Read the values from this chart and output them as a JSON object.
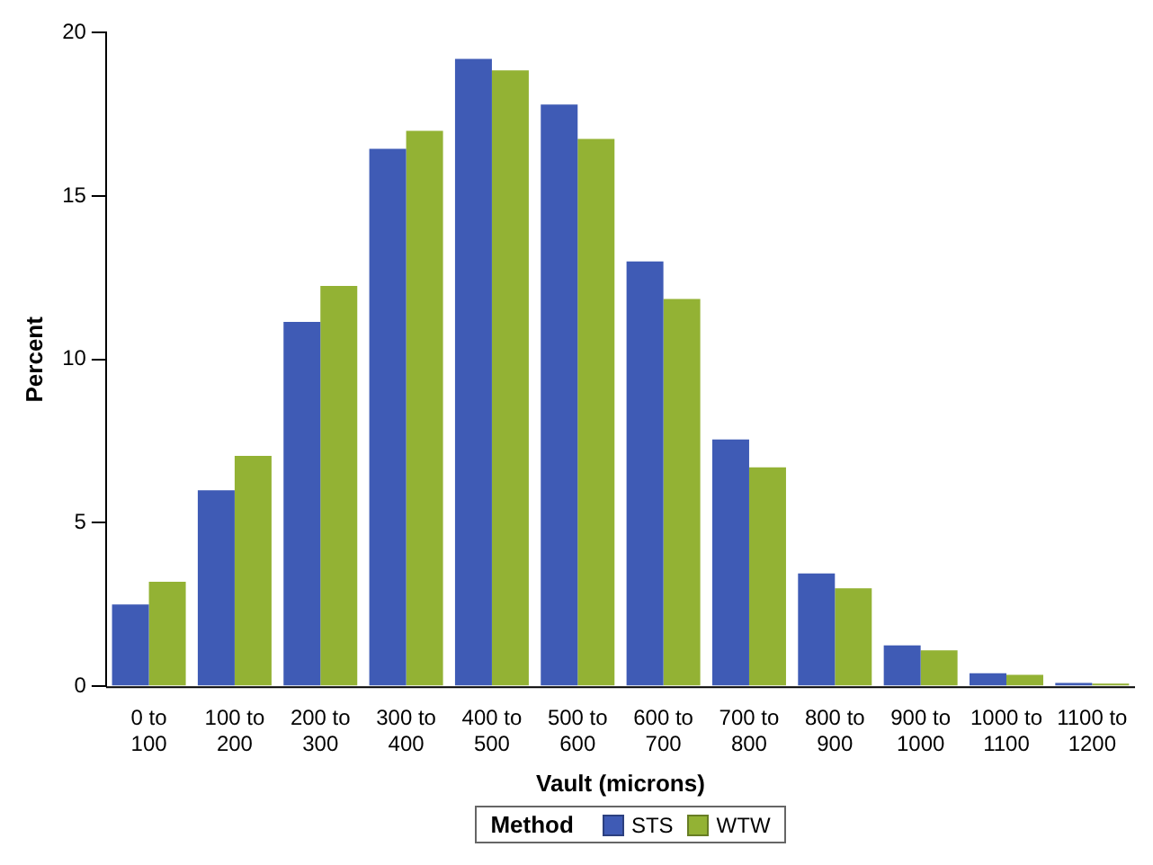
{
  "chart_data": {
    "type": "bar",
    "xlabel": "Vault (microns)",
    "ylabel": "Percent",
    "legend_title": "Method",
    "legend": "bottom",
    "grid": false,
    "ylim": [
      0,
      20
    ],
    "yticks": [
      0,
      5,
      10,
      15,
      20
    ],
    "categories": [
      "0 to 100",
      "100 to 200",
      "200 to 300",
      "300 to 400",
      "400 to 500",
      "500 to 600",
      "600 to 700",
      "700 to 800",
      "800 to 900",
      "900 to 1000",
      "1000 to 1100",
      "1100 to 1200"
    ],
    "series": [
      {
        "name": "STS",
        "color": "#3f5bb5",
        "values": [
          2.5,
          6.0,
          11.15,
          16.45,
          19.2,
          17.8,
          13.0,
          7.55,
          3.45,
          1.25,
          0.4,
          0.1
        ]
      },
      {
        "name": "WTW",
        "color": "#93b234",
        "values": [
          3.2,
          7.05,
          12.25,
          17.0,
          18.85,
          16.75,
          11.85,
          6.7,
          3.0,
          1.1,
          0.35,
          0.08
        ]
      }
    ]
  }
}
